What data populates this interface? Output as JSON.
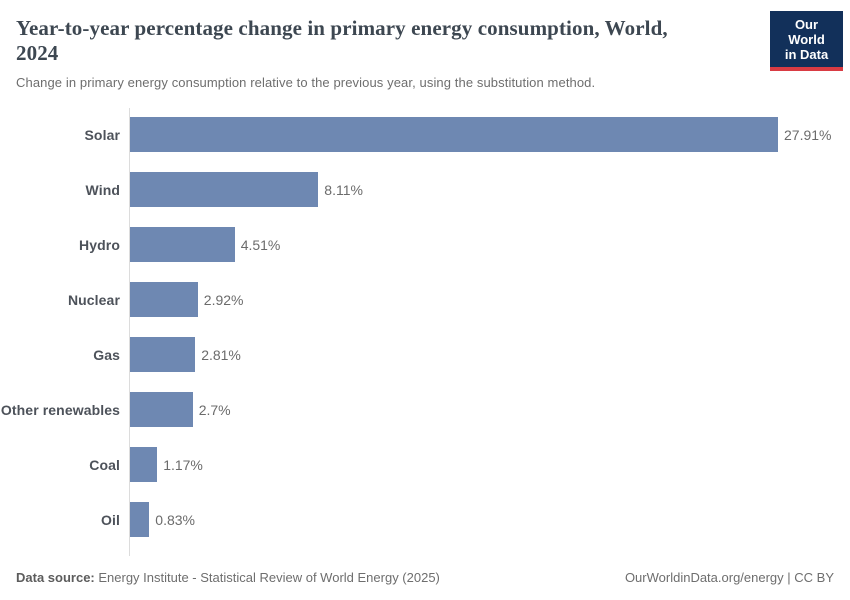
{
  "header": {
    "title": "Year-to-year percentage change in primary energy consumption, World, 2024",
    "subtitle": "Change in primary energy consumption relative to the previous year, using the substitution method.",
    "logo": {
      "line1": "Our World",
      "line2": "in Data",
      "bg_color": "#12305a",
      "accent_color": "#d93b43"
    }
  },
  "chart_data": {
    "type": "bar",
    "orientation": "horizontal",
    "title": "Year-to-year percentage change in primary energy consumption, World, 2024",
    "xlabel": "",
    "ylabel": "",
    "categories": [
      "Solar",
      "Wind",
      "Hydro",
      "Nuclear",
      "Gas",
      "Other renewables",
      "Coal",
      "Oil"
    ],
    "values": [
      27.91,
      8.11,
      4.51,
      2.92,
      2.81,
      2.7,
      1.17,
      0.83
    ],
    "value_labels": [
      "27.91%",
      "8.11%",
      "4.51%",
      "2.92%",
      "2.81%",
      "2.7%",
      "1.17%",
      "0.83%"
    ],
    "xlim": [
      0,
      27.91
    ],
    "bar_color": "#6e88b2",
    "grid": false,
    "legend": false
  },
  "footer": {
    "source_label": "Data source:",
    "source_text": " Energy Institute - Statistical Review of World Energy (2025)",
    "credit": "OurWorldinData.org/energy | CC BY"
  }
}
